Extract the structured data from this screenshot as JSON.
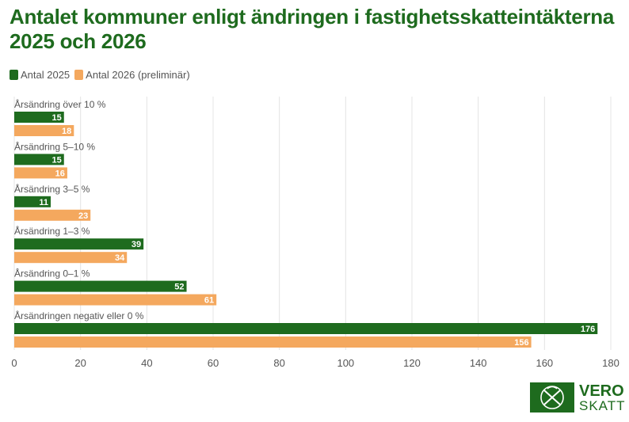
{
  "title": "Antalet kommuner enligt ändringen i fastighetsskatteintäkterna 2025 och 2026",
  "legend": [
    {
      "label": "Antal 2025",
      "color": "#1e6b1e"
    },
    {
      "label": "Antal 2026 (preliminär)",
      "color": "#f4a85e"
    }
  ],
  "logo": {
    "top": "VERO",
    "bottom": "SKATT"
  },
  "chart_data": {
    "type": "bar",
    "orientation": "horizontal",
    "title": "Antalet kommuner enligt ändringen i fastighetsskatteintäkterna 2025 och 2026",
    "categories": [
      "Årsändring över 10 %",
      "Årsändring 5–10 %",
      "Årsändring 3–5 %",
      "Årsändring 1–3 %",
      "Årsändring 0–1 %",
      "Årsändringen negativ eller 0 %"
    ],
    "series": [
      {
        "name": "Antal 2025",
        "color": "#1e6b1e",
        "values": [
          15,
          15,
          11,
          39,
          52,
          176
        ]
      },
      {
        "name": "Antal 2026 (preliminär)",
        "color": "#f4a85e",
        "values": [
          18,
          16,
          23,
          34,
          61,
          156
        ]
      }
    ],
    "xticks": [
      0,
      20,
      40,
      60,
      80,
      100,
      120,
      140,
      160,
      180
    ],
    "xlim": [
      0,
      180
    ],
    "grid": true,
    "legend_position": "top-left",
    "data_labels": true
  }
}
